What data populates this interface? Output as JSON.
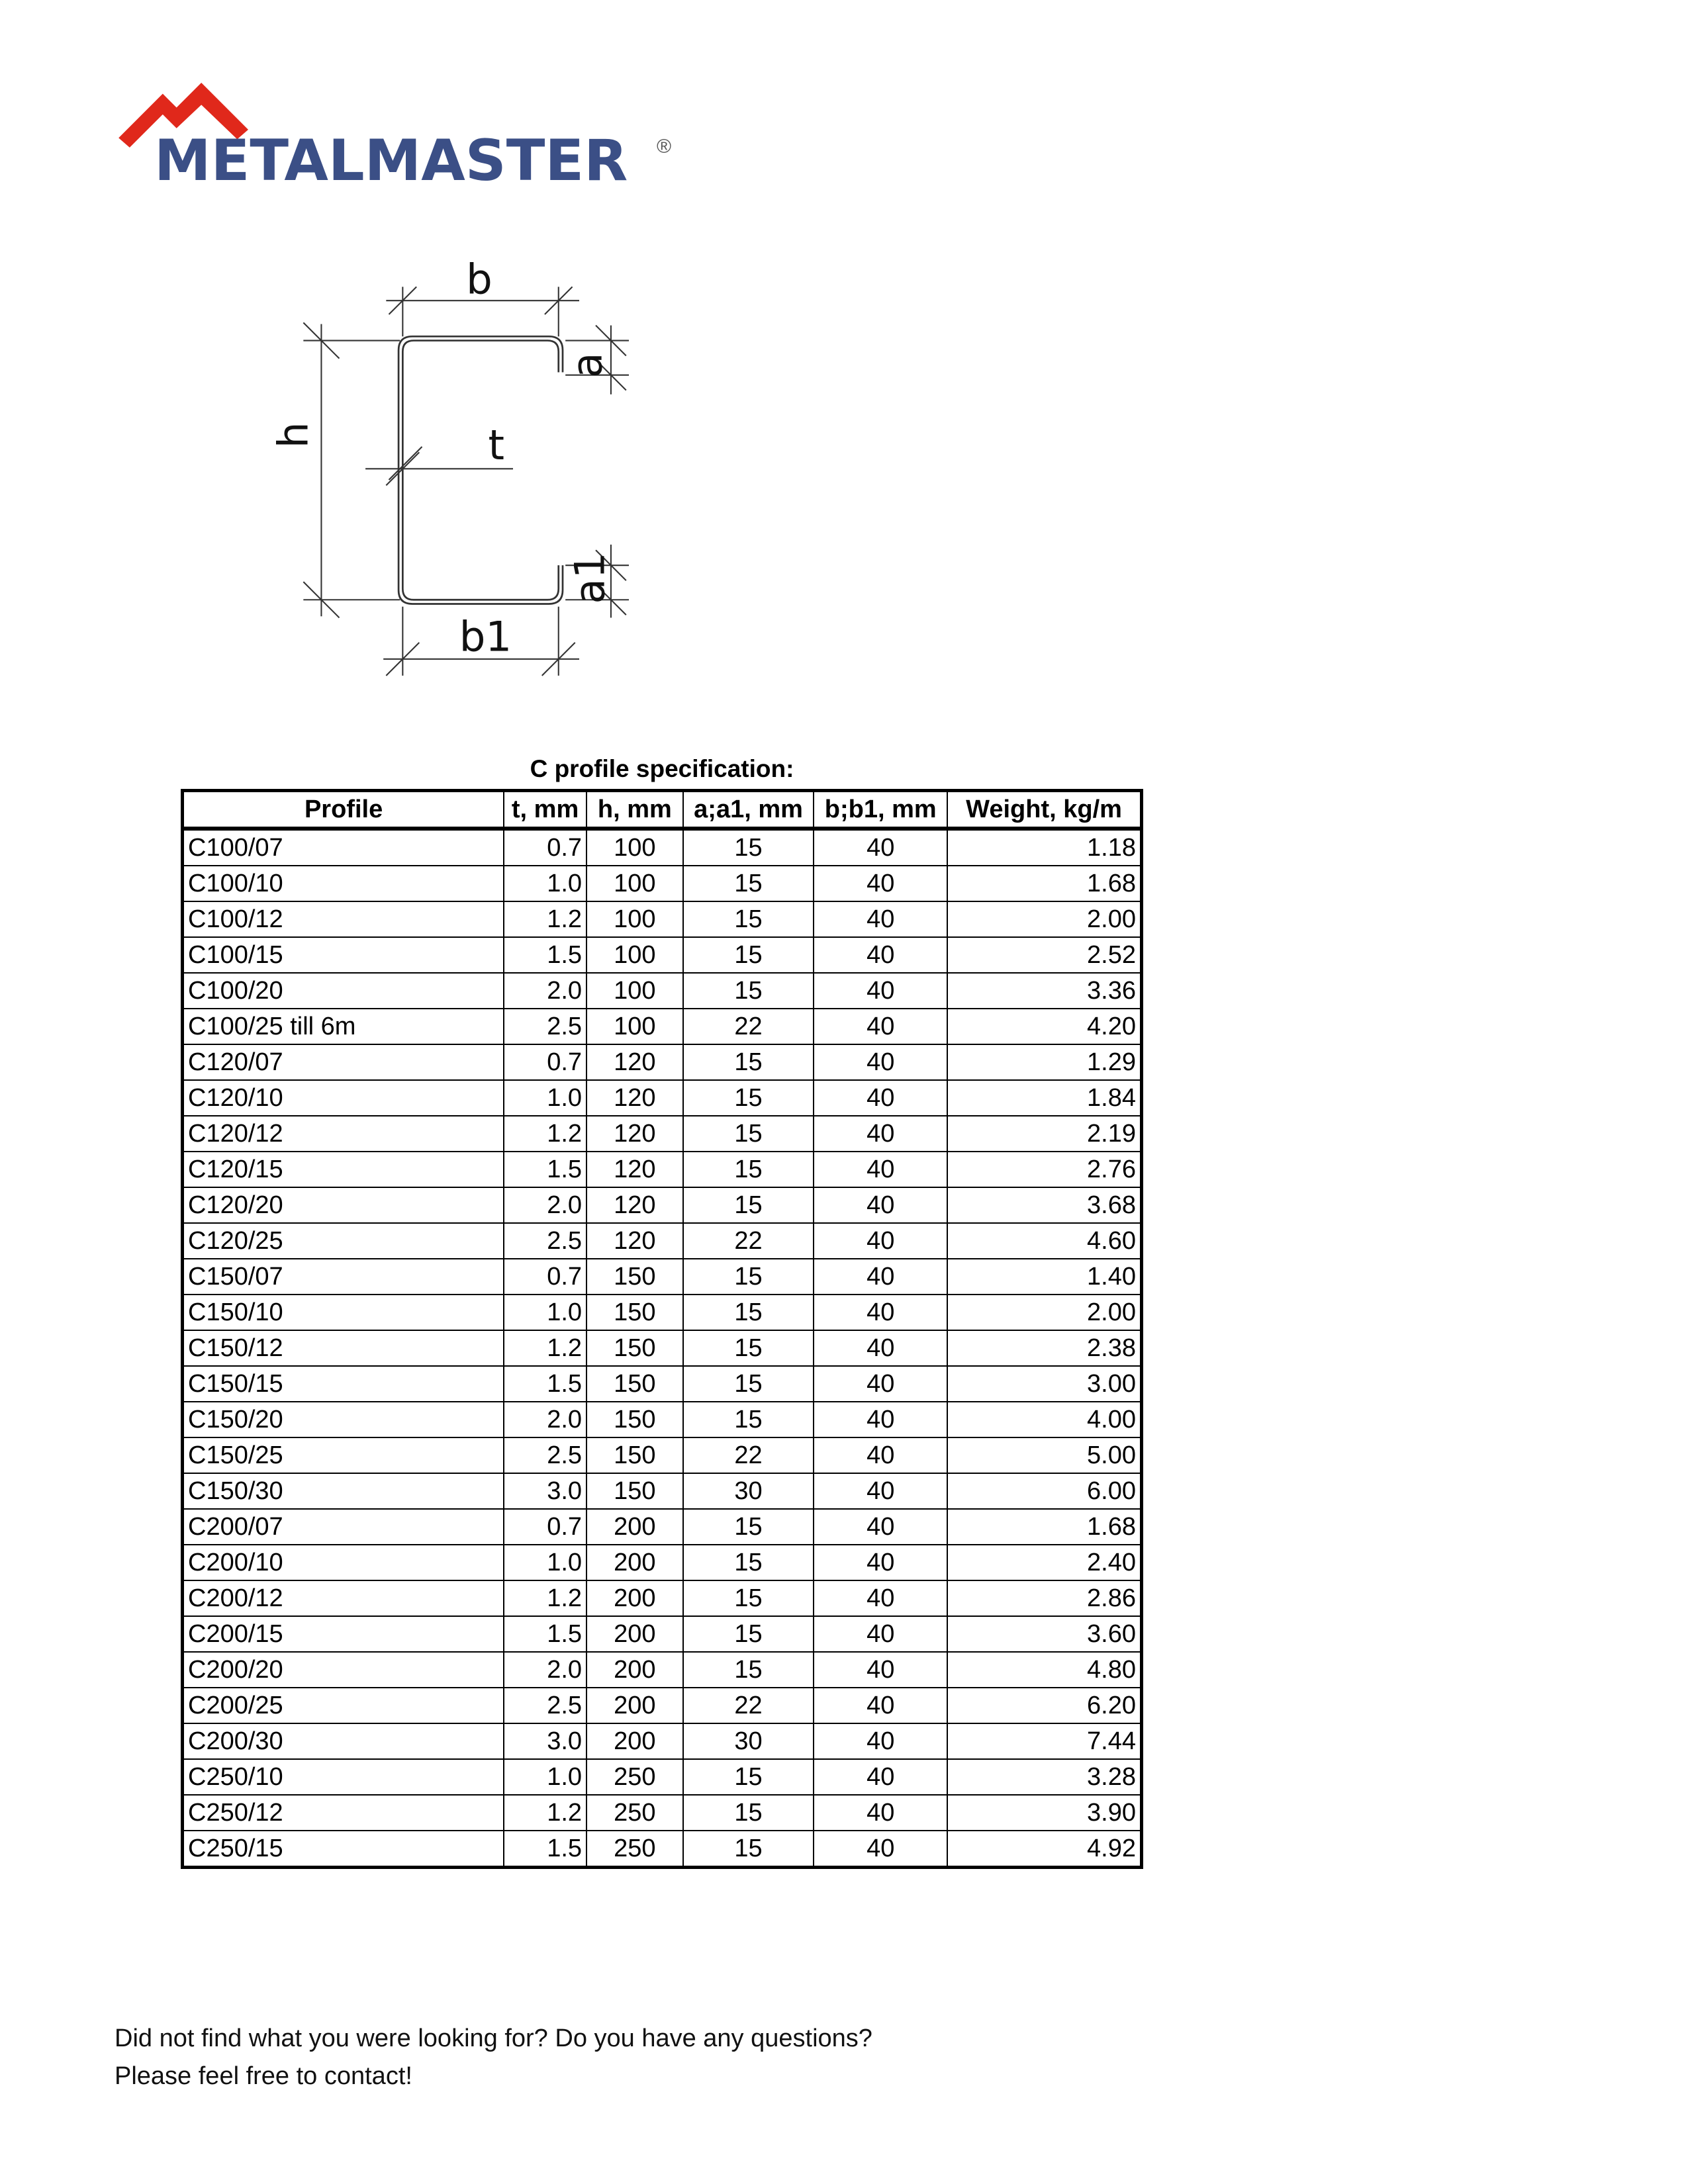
{
  "logo": {
    "text": "METALMASTER",
    "registered": "®",
    "brand_color": "#3b4f86",
    "roof_color": "#e0281b"
  },
  "diagram": {
    "labels": {
      "b": "b",
      "h": "h",
      "t": "t",
      "a": "a",
      "a1": "a1",
      "b1": "b1"
    }
  },
  "table": {
    "title": "C profile specification:",
    "headers": [
      "Profile",
      "t, mm",
      "h, mm",
      "a;a1, mm",
      "b;b1, mm",
      "Weight, kg/m"
    ],
    "rows": [
      [
        "C100/07",
        "0.7",
        "100",
        "15",
        "40",
        "1.18"
      ],
      [
        "C100/10",
        "1.0",
        "100",
        "15",
        "40",
        "1.68"
      ],
      [
        "C100/12",
        "1.2",
        "100",
        "15",
        "40",
        "2.00"
      ],
      [
        "C100/15",
        "1.5",
        "100",
        "15",
        "40",
        "2.52"
      ],
      [
        "C100/20",
        "2.0",
        "100",
        "15",
        "40",
        "3.36"
      ],
      [
        "C100/25 till 6m",
        "2.5",
        "100",
        "22",
        "40",
        "4.20"
      ],
      [
        "C120/07",
        "0.7",
        "120",
        "15",
        "40",
        "1.29"
      ],
      [
        "C120/10",
        "1.0",
        "120",
        "15",
        "40",
        "1.84"
      ],
      [
        "C120/12",
        "1.2",
        "120",
        "15",
        "40",
        "2.19"
      ],
      [
        "C120/15",
        "1.5",
        "120",
        "15",
        "40",
        "2.76"
      ],
      [
        "C120/20",
        "2.0",
        "120",
        "15",
        "40",
        "3.68"
      ],
      [
        "C120/25",
        "2.5",
        "120",
        "22",
        "40",
        "4.60"
      ],
      [
        "C150/07",
        "0.7",
        "150",
        "15",
        "40",
        "1.40"
      ],
      [
        "C150/10",
        "1.0",
        "150",
        "15",
        "40",
        "2.00"
      ],
      [
        "C150/12",
        "1.2",
        "150",
        "15",
        "40",
        "2.38"
      ],
      [
        "C150/15",
        "1.5",
        "150",
        "15",
        "40",
        "3.00"
      ],
      [
        "C150/20",
        "2.0",
        "150",
        "15",
        "40",
        "4.00"
      ],
      [
        "C150/25",
        "2.5",
        "150",
        "22",
        "40",
        "5.00"
      ],
      [
        "C150/30",
        "3.0",
        "150",
        "30",
        "40",
        "6.00"
      ],
      [
        "C200/07",
        "0.7",
        "200",
        "15",
        "40",
        "1.68"
      ],
      [
        "C200/10",
        "1.0",
        "200",
        "15",
        "40",
        "2.40"
      ],
      [
        "C200/12",
        "1.2",
        "200",
        "15",
        "40",
        "2.86"
      ],
      [
        "C200/15",
        "1.5",
        "200",
        "15",
        "40",
        "3.60"
      ],
      [
        "C200/20",
        "2.0",
        "200",
        "15",
        "40",
        "4.80"
      ],
      [
        "C200/25",
        "2.5",
        "200",
        "22",
        "40",
        "6.20"
      ],
      [
        "C200/30",
        "3.0",
        "200",
        "30",
        "40",
        "7.44"
      ],
      [
        "C250/10",
        "1.0",
        "250",
        "15",
        "40",
        "3.28"
      ],
      [
        "C250/12",
        "1.2",
        "250",
        "15",
        "40",
        "3.90"
      ],
      [
        "C250/15",
        "1.5",
        "250",
        "15",
        "40",
        "4.92"
      ]
    ]
  },
  "footer": {
    "line1": "Did not find what you were looking for? Do you have any questions?",
    "line2": "Please feel free to contact!"
  }
}
